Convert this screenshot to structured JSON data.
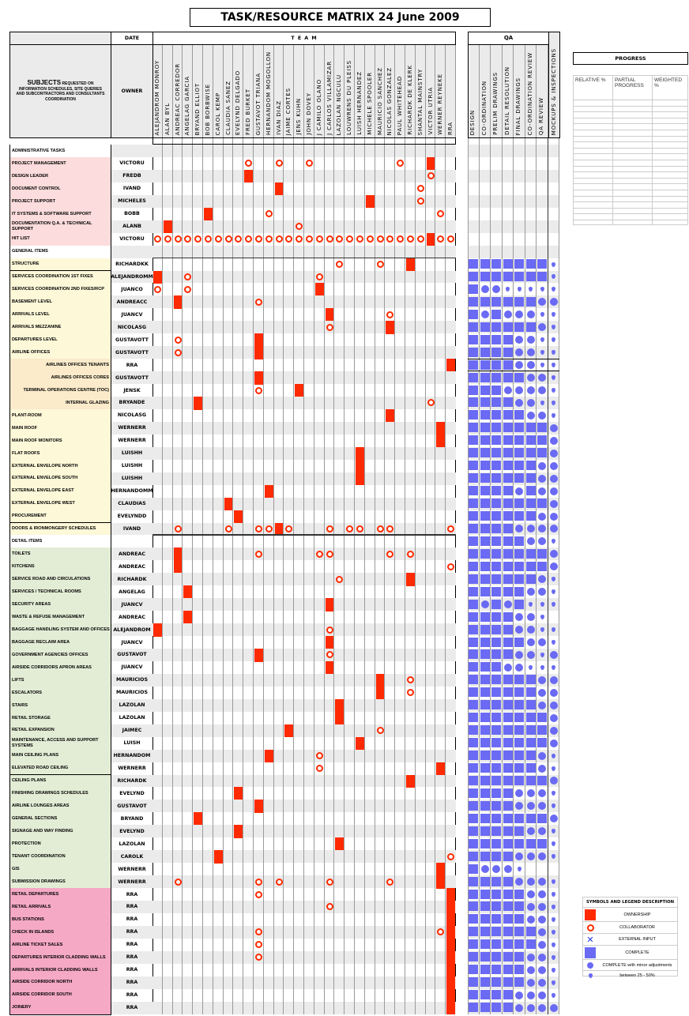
{
  "title": "TASK/RESOURCE MATRIX  24 June 2009",
  "header": {
    "date_label": "DATE",
    "team_label": "T   E   A   M",
    "subjects_main": "SUBJECTS",
    "subjects_sub": "REQUESTED ON INFORMATION SCHEDULES, SITE QUERIES AND SUBCONTRACTORS AND CONSULTANTS COORDINATION",
    "owner_label": "OWNER"
  },
  "team": [
    "ALEJANDROM  MONROY",
    "ALAN BYL",
    "ANDREAC CORREDOR",
    "ANGELAG GARCIA",
    "BRYAND ELLIOT",
    "BOB BORBWISE",
    "CAROL KEMP",
    "CLAUDIA SANEZ",
    "EVELYND DELGADO",
    "FRED BURKET",
    "GUSTAVOT TRIANA",
    "HERNANDOM MOGOLLON",
    "IVAN DIAZ",
    "JAIME CORTES",
    "JENS KUHN",
    "JOHN DOVEY",
    "J CAMILO OLANO",
    "J CARLOS VILLAMIZAR",
    "LAZOLAN NGCULU",
    "LOUWRENS DU PLEISS",
    "LUISH HERNANDEZ",
    "MICHELE SPOOLER",
    "MAURICIO SANCHEZ",
    "NICOLAS GONZALEZ",
    "PAUL WHITEHEAD",
    "RICHARDK DE KLERK",
    "SHANTAL MAINSTRY",
    "VICTOR UTRIA",
    "WERNER REYNEKE",
    "RRA"
  ],
  "qa": {
    "label": "QA",
    "columns": [
      "DESIGN",
      "CO-ORDINATION",
      "PRELIM DRAWINGS",
      "DETAIL RESOLUTION",
      "FINAL DRAWINGS",
      "CO-ORDINATION REVIEW",
      "QA REVIEW"
    ],
    "mockups_label": "MOCKUPS & INSPECTIONS"
  },
  "progress": {
    "title": "PROGRESS",
    "columns": [
      "RELATIVE %",
      "PARTIAL PROGRESS",
      "WEIGHTED %"
    ]
  },
  "legend": {
    "title": "SYMBOLS AND LEGEND DESCRIPTION",
    "items": [
      {
        "symbol": "ownership-square",
        "label": "OWNERSHIP"
      },
      {
        "symbol": "collaborator-ring",
        "label": "COLLABORATOR"
      },
      {
        "symbol": "external-x",
        "label": "EXTERNAL INPUT"
      },
      {
        "symbol": "complete-square",
        "label": "COMPLETE"
      },
      {
        "symbol": "minor-circle",
        "label": "COMPLETE with minor adjustments"
      },
      {
        "symbol": "drop",
        "label": "between 25 - 50%"
      }
    ]
  },
  "colors": {
    "ownership": "#ff2a00",
    "qa": "#6a6af4"
  },
  "qa_legend": {
    "S": "complete",
    "C": "complete with minor adjustments",
    "D": "between 25-50%",
    "-": "none"
  },
  "rows": [
    {
      "t": "section",
      "label": "ADMINISTRATIVE TASKS",
      "owner": "",
      "own": [],
      "col": [],
      "qa": ""
    },
    {
      "t": "admin",
      "label": "PROJECT MANAGEMENT",
      "owner": "VICTORU",
      "own": [
        27
      ],
      "col": [
        9,
        12,
        15,
        24
      ],
      "qa": ""
    },
    {
      "t": "admin",
      "label": "DESIGN LEADER",
      "owner": "FREDB",
      "own": [
        9
      ],
      "col": [
        27
      ],
      "qa": ""
    },
    {
      "t": "admin",
      "label": "DOCUMENT CONTROL",
      "owner": "IVAND",
      "own": [
        12
      ],
      "col": [
        26
      ],
      "qa": ""
    },
    {
      "t": "admin",
      "label": "PROJECT SUPPORT",
      "owner": "MICHELES",
      "own": [
        21
      ],
      "col": [
        26
      ],
      "qa": ""
    },
    {
      "t": "admin",
      "label": "IT SYSTEMS & SOFTWARE SUPPORT",
      "owner": "BOBB",
      "own": [
        5
      ],
      "col": [
        11,
        28
      ],
      "qa": ""
    },
    {
      "t": "admin",
      "label": "DOCUMENTATION Q.A. & TECHNICAL SUPPORT",
      "owner": "ALANB",
      "own": [
        1
      ],
      "col": [
        14
      ],
      "qa": ""
    },
    {
      "t": "admin",
      "label": "HIT LIST",
      "owner": "VICTORU",
      "own": [
        27
      ],
      "col": [
        0,
        1,
        2,
        3,
        4,
        5,
        6,
        7,
        8,
        9,
        10,
        11,
        12,
        13,
        14,
        15,
        16,
        17,
        18,
        19,
        20,
        21,
        22,
        23,
        24,
        25,
        26,
        28,
        29
      ],
      "qa": ""
    },
    {
      "t": "section",
      "label": "GENERAL ITEMS",
      "owner": "",
      "own": [],
      "col": [],
      "qa": ""
    },
    {
      "t": "general",
      "label": "STRUCTURE",
      "owner": "RICHARDKK",
      "own": [
        25
      ],
      "col": [
        18,
        22
      ],
      "qa": "SSSSSSSD"
    },
    {
      "t": "general",
      "label": "SERVICES COORDINATION 1ST FIXES",
      "owner": "ALEJANDROMM",
      "own": [
        0
      ],
      "col": [
        3,
        16
      ],
      "qa": "SSSSSSSD"
    },
    {
      "t": "general",
      "label": "SERVICES COORDINATION 2ND FIXES/RCP",
      "owner": "JUANCO",
      "own": [
        16
      ],
      "col": [
        0,
        3
      ],
      "qa": "SCCDDDDD"
    },
    {
      "t": "general",
      "label": "BASEMENT LEVEL",
      "owner": "ANDREACC",
      "own": [
        2
      ],
      "col": [
        10
      ],
      "qa": "SSSSSSCC"
    },
    {
      "t": "general",
      "label": "ARRIVALS LEVEL",
      "owner": "JUANCV",
      "own": [
        17
      ],
      "col": [
        23
      ],
      "qa": "SCSCCCDD"
    },
    {
      "t": "general",
      "label": "ARRIVALS MEZZANINE",
      "owner": "NICOLASG",
      "own": [
        23
      ],
      "col": [
        17
      ],
      "qa": "SSSSSSCD"
    },
    {
      "t": "general",
      "label": "DEPARTURES LEVEL",
      "owner": "GUSTAVOTT",
      "own": [
        10
      ],
      "col": [
        2
      ],
      "qa": "SSSSCCDD"
    },
    {
      "t": "general",
      "label": "AIRLINE OFFICES",
      "owner": "GUSTAVOTT",
      "own": [
        10
      ],
      "col": [
        2
      ],
      "qa": "SSSSCCDD"
    },
    {
      "t": "sub",
      "label": "AIRLINES OFFICES TENANTS",
      "owner": "RRA",
      "own": [
        29
      ],
      "col": [],
      "qa": "SSSSCCDD"
    },
    {
      "t": "sub",
      "label": "AIRLINES OFFICES CORES",
      "owner": "GUSTAVOTT",
      "own": [
        10
      ],
      "col": [],
      "qa": "SSSSSCCD"
    },
    {
      "t": "sub",
      "label": "TERMINAL OPERATIONS CENTRE (TOC)",
      "owner": "JENSK",
      "own": [
        14
      ],
      "col": [
        10
      ],
      "qa": "SSSCCCCD"
    },
    {
      "t": "sub",
      "label": "INTERNAL GLAZING",
      "owner": "BRYANDE",
      "own": [
        4
      ],
      "col": [
        27
      ],
      "qa": "SSSSCCDD"
    },
    {
      "t": "general",
      "label": "PLANT-ROOM",
      "owner": "NICOLASG",
      "own": [
        23
      ],
      "col": [],
      "qa": "SSSSSCCD"
    },
    {
      "t": "general",
      "label": "MAIN ROOF",
      "owner": "WERNERR",
      "own": [
        28
      ],
      "col": [],
      "qa": "SSSSSSSC"
    },
    {
      "t": "general",
      "label": "MAIN ROOF MONITORS",
      "owner": "WERNERR",
      "own": [
        28
      ],
      "col": [],
      "qa": "SSSSSSSC"
    },
    {
      "t": "general",
      "label": "FLAT ROOFS",
      "owner": "LUISHH",
      "own": [
        20
      ],
      "col": [],
      "qa": "SSSSSSSC"
    },
    {
      "t": "general",
      "label": "EXTERNAL ENVELOPE NORTH",
      "owner": "LUISHH",
      "own": [
        20
      ],
      "col": [],
      "qa": "SSSSSSCC"
    },
    {
      "t": "general",
      "label": "EXTERNAL ENVELOPE  SOUTH",
      "owner": "LUISHH",
      "own": [
        20
      ],
      "col": [],
      "qa": "SSSSSSCC"
    },
    {
      "t": "general",
      "label": "EXTERNAL ENVELOPE  EAST",
      "owner": "HERNANDOMM",
      "own": [
        11
      ],
      "col": [],
      "qa": "SSSSCSCC"
    },
    {
      "t": "general",
      "label": "EXTERNAL ENVELOPE  WEST",
      "owner": "CLAUDIAS",
      "own": [
        7
      ],
      "col": [],
      "qa": "SSSSSSSC"
    },
    {
      "t": "general",
      "label": "PROCUREMENT",
      "owner": "EVELYNDD",
      "own": [
        8
      ],
      "col": [],
      "qa": "SSSSSSCC"
    },
    {
      "t": "general",
      "label": "DOORS & IRONMONGERY SCHEDULES",
      "owner": "IVAND",
      "own": [
        12
      ],
      "col": [
        2,
        7,
        10,
        11,
        13,
        17,
        19,
        20,
        22,
        23,
        29
      ],
      "qa": "SSSSCCCC"
    },
    {
      "t": "section",
      "label": "DETAIL ITEMS",
      "owner": "",
      "own": [],
      "col": [],
      "qa": "SSSSSCCD"
    },
    {
      "t": "detail",
      "label": "TOILETS",
      "owner": "ANDREAC",
      "own": [
        2
      ],
      "col": [
        10,
        16,
        17,
        23,
        25
      ],
      "qa": "SSSSSSSC"
    },
    {
      "t": "detail",
      "label": "KITCHENS",
      "owner": "ANDREAC",
      "own": [
        2
      ],
      "col": [
        29
      ],
      "qa": "SSSSSSSC"
    },
    {
      "t": "detail",
      "label": "SERVICE ROAD AND CIRCULATIONS",
      "owner": "RICHARDK",
      "own": [
        25
      ],
      "col": [
        18
      ],
      "qa": "SSSSSSCD"
    },
    {
      "t": "detail",
      "label": "SERVICES / TECHNICAL ROOMS",
      "owner": "ANGELAG",
      "own": [
        3
      ],
      "col": [],
      "qa": "SSSSSCCD"
    },
    {
      "t": "detail",
      "label": "SECURITY AREAS",
      "owner": "JUANCV",
      "own": [
        17
      ],
      "col": [],
      "qa": "SCSCSDDD"
    },
    {
      "t": "detail",
      "label": "WASTE & REFUSE MANAGEMENT",
      "owner": "ANDREAC",
      "own": [
        3
      ],
      "col": [],
      "qa": "SSSSCCD-"
    },
    {
      "t": "detail",
      "label": "BAGGAGE HANDLING SYSTEM AND OFFICES",
      "owner": "ALEJANDROM",
      "own": [
        0
      ],
      "col": [
        17
      ],
      "qa": "SSSSCCDD"
    },
    {
      "t": "detail",
      "label": "BAGGAGE RECLAIM AREA",
      "owner": "JUANCV",
      "own": [
        17
      ],
      "col": [],
      "qa": "SSSSSCCD"
    },
    {
      "t": "detail",
      "label": "GOVERNMENT AGENCIES OFFICES",
      "owner": "GUSTAVOT",
      "own": [
        10
      ],
      "col": [
        17
      ],
      "qa": "SSSSCCDC"
    },
    {
      "t": "detail",
      "label": "AIRSIDE CORRIDORS APRON AREAS",
      "owner": "JUANCV",
      "own": [
        17
      ],
      "col": [],
      "qa": "SSSCCDDD"
    },
    {
      "t": "detail",
      "label": "LIFTS",
      "owner": "MAURICIOS",
      "own": [
        22
      ],
      "col": [
        25
      ],
      "qa": "SSSSSSCC"
    },
    {
      "t": "detail",
      "label": "ESCALATORS",
      "owner": "MAURICIOS",
      "own": [
        22
      ],
      "col": [
        25
      ],
      "qa": "SSSSSSCC"
    },
    {
      "t": "detail",
      "label": "STAIRS",
      "owner": "LAZOLAN",
      "own": [
        18
      ],
      "col": [],
      "qa": "SSSSSSCC"
    },
    {
      "t": "detail",
      "label": "RETAIL STORAGE",
      "owner": "LAZOLAN",
      "own": [
        18
      ],
      "col": [],
      "qa": "SSSSSSSC"
    },
    {
      "t": "detail",
      "label": "RETAIL EXPANSION",
      "owner": "JAIMEC",
      "own": [
        13
      ],
      "col": [
        22
      ],
      "qa": "SSSSSSSC"
    },
    {
      "t": "detail",
      "label": "MAINTENANCE, ACCESS AND SUPPORT SYSTEMS",
      "owner": "LUISH",
      "own": [
        20
      ],
      "col": [],
      "qa": "SSSSSSSC"
    },
    {
      "t": "detail",
      "label": "MAIN CEILING PLANS",
      "owner": "HERNANDOM",
      "own": [
        11
      ],
      "col": [
        16
      ],
      "qa": "SSSSSSCD"
    },
    {
      "t": "detail",
      "label": "ELEVATED ROAD CEILING",
      "owner": "WERNERR",
      "own": [
        28
      ],
      "col": [
        16
      ],
      "qa": "SSSSSSCD"
    },
    {
      "t": "detail",
      "label": "CEILING PLANS",
      "owner": "RICHARDK",
      "own": [
        25
      ],
      "col": [],
      "qa": "SSSSSSSC"
    },
    {
      "t": "detail",
      "label": "FINISHING DRAWINGS SCHEDULES",
      "owner": "EVELYND",
      "own": [
        8
      ],
      "col": [],
      "qa": "SSSSCCCD"
    },
    {
      "t": "detail",
      "label": "AIRLINE LOUNGES AREAS",
      "owner": "GUSTAVOT",
      "own": [
        10
      ],
      "col": [],
      "qa": "SSSSCCCD"
    },
    {
      "t": "detail",
      "label": "GENERAL SECTIONS",
      "owner": "BRYAND",
      "own": [
        4
      ],
      "col": [],
      "qa": "SSSSSSSC"
    },
    {
      "t": "detail",
      "label": "SIGNAGE AND WAY FINDING",
      "owner": "EVELYND",
      "own": [
        8
      ],
      "col": [],
      "qa": "SSSSSCCD"
    },
    {
      "t": "detail",
      "label": "PROTECTION",
      "owner": "LAZOLAN",
      "own": [
        18
      ],
      "col": [],
      "qa": "SSSSSSSD"
    },
    {
      "t": "detail",
      "label": "TENANT COORDINATION",
      "owner": "CAROLK",
      "own": [
        6
      ],
      "col": [
        29
      ],
      "qa": "SSSSCCCD"
    },
    {
      "t": "detail",
      "label": "GIS",
      "owner": "WERNERR",
      "own": [
        28
      ],
      "col": [],
      "qa": "SCCCD---"
    },
    {
      "t": "detail",
      "label": "SUBMISSION DRAWINGS",
      "owner": "WERNERR",
      "own": [
        28
      ],
      "col": [
        2,
        10,
        12,
        17,
        23
      ],
      "qa": "SSSSCCCD"
    },
    {
      "t": "rra",
      "label": "RETAIL DEPARTURES",
      "owner": "RRA",
      "own": [
        29
      ],
      "col": [
        10
      ],
      "qa": "SSSSSCCD"
    },
    {
      "t": "rra",
      "label": "RETAIL ARRIVALS",
      "owner": "RRA",
      "own": [
        29
      ],
      "col": [
        17
      ],
      "qa": "SSSSSCCD"
    },
    {
      "t": "rra",
      "label": "BUS STATIONS",
      "owner": "RRA",
      "own": [
        29
      ],
      "col": [],
      "qa": "SSSSSCCD"
    },
    {
      "t": "rra",
      "label": "CHECK IN ISLANDS",
      "owner": "RRA",
      "own": [
        29
      ],
      "col": [
        10,
        28
      ],
      "qa": "SSSSSSCD"
    },
    {
      "t": "rra",
      "label": "AIRLINE TICKET SALES",
      "owner": "RRA",
      "own": [
        29
      ],
      "col": [
        10
      ],
      "qa": "SSSSSSCD"
    },
    {
      "t": "rra",
      "label": "DEPARTURES INTERIOR CLADDING WALLS",
      "owner": "RRA",
      "own": [
        29
      ],
      "col": [
        10
      ],
      "qa": "SSSSSCCD"
    },
    {
      "t": "rra",
      "label": "ARRIVALS INTERIOR CLADDING WALLS",
      "owner": "RRA",
      "own": [
        29
      ],
      "col": [],
      "qa": "SSSSSCCD"
    },
    {
      "t": "rra",
      "label": "AIRSIDE CORRIDOR NORTH",
      "owner": "RRA",
      "own": [
        29
      ],
      "col": [],
      "qa": "SSSSSCCD"
    },
    {
      "t": "rra",
      "label": "AIRSIDE CORRIDOR SOUTH",
      "owner": "RRA",
      "own": [
        29
      ],
      "col": [],
      "qa": "SSSSCCCD"
    },
    {
      "t": "rra",
      "label": "JOINERY",
      "owner": "RRA",
      "own": [
        29
      ],
      "col": [],
      "qa": "SSSSCCCC"
    }
  ]
}
